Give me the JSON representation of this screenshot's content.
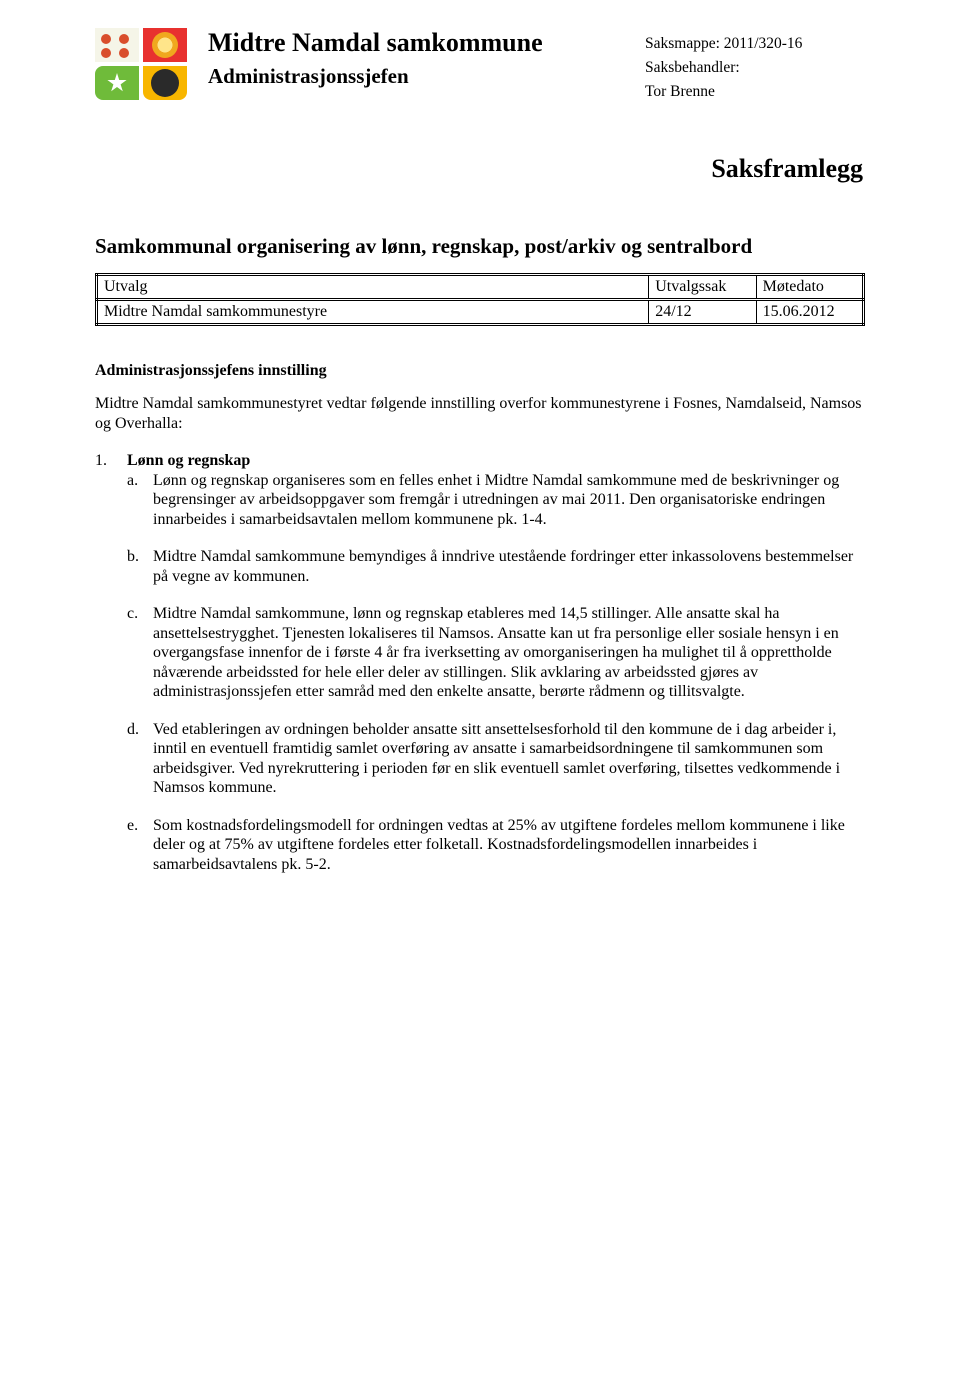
{
  "header": {
    "org_name": "Midtre Namdal samkommune",
    "org_sub": "Administrasjonssjefen",
    "saksmappe_label": "Saksmappe:",
    "saksmappe_value": "2011/320-16",
    "saksbehandler_label": "Saksbehandler:",
    "saksbehandler_value": "Tor Brenne"
  },
  "doc_type": "Saksframlegg",
  "doc_title": "Samkommunal organisering av lønn, regnskap, post/arkiv og sentralbord",
  "table": {
    "columns": [
      "Utvalg",
      "Utvalgssak",
      "Møtedato"
    ],
    "row": [
      "Midtre Namdal samkommunestyre",
      "24/12",
      "15.06.2012"
    ]
  },
  "innstilling": {
    "heading": "Administrasjonssjefens innstilling",
    "intro": "Midtre Namdal samkommunestyret vedtar følgende innstilling overfor kommunestyrene i Fosnes, Namdalseid, Namsos og Overhalla:",
    "items": [
      {
        "num": "1.",
        "title": "Lønn og regnskap",
        "sub": [
          {
            "letter": "a.",
            "text": "Lønn og regnskap organiseres som en felles enhet i Midtre Namdal samkommune med de beskrivninger og begrensinger av arbeidsoppgaver som fremgår i utredningen av mai 2011. Den organisatoriske endringen innarbeides i samarbeidsavtalen mellom kommunene pk. 1-4."
          },
          {
            "letter": "b.",
            "text": "Midtre Namdal samkommune bemyndiges å inndrive utestående fordringer etter inkassolovens bestemmelser på vegne av kommunen."
          },
          {
            "letter": "c.",
            "text": "Midtre Namdal samkommune, lønn og regnskap etableres med 14,5 stillinger. Alle ansatte skal ha ansettelsestrygghet. Tjenesten lokaliseres til Namsos. Ansatte kan ut fra personlige eller sosiale hensyn i en overgangsfase innenfor de i første 4 år fra iverksetting av omorganiseringen ha mulighet til å opprettholde nåværende arbeidssted for hele eller deler av stillingen. Slik avklaring av arbeidssted gjøres av administrasjonssjefen etter samråd med den enkelte ansatte, berørte rådmenn og tillitsvalgte."
          },
          {
            "letter": "d.",
            "text": "Ved etableringen av ordningen beholder ansatte sitt ansettelsesforhold til den kommune de i dag arbeider i, inntil en eventuell framtidig samlet overføring av ansatte i samarbeidsordningene til samkommunen som arbeidsgiver. Ved nyrekruttering i perioden før en slik eventuell samlet overføring, tilsettes vedkommende i Namsos kommune."
          },
          {
            "letter": "e.",
            "text": "Som kostnadsfordelingsmodell for ordningen vedtas at 25% av utgiftene fordeles mellom kommunene i like deler og at 75% av utgiftene fordeles etter folketall. Kostnadsfordelingsmodellen innarbeides i samarbeidsavtalens pk. 5-2."
          }
        ]
      }
    ]
  }
}
